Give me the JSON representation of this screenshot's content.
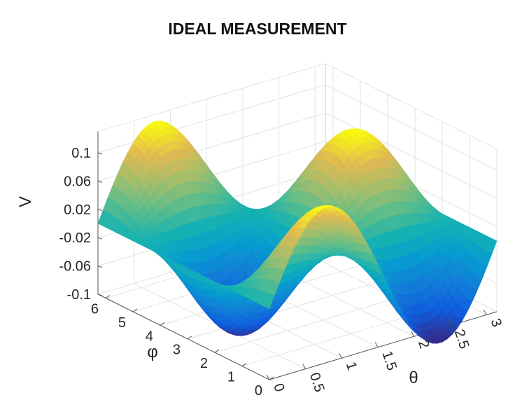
{
  "chart_data": {
    "type": "surface",
    "title": "IDEAL MEASUREMENT",
    "xlabel": "θ",
    "ylabel": "φ",
    "zlabel": "V",
    "x_range": [
      0,
      3.14159
    ],
    "y_range": [
      0,
      6.28318
    ],
    "zlim": [
      -0.1,
      0.13
    ],
    "x_ticks": [
      "0",
      "0.5",
      "1",
      "1.5",
      "2",
      "2.5",
      "3"
    ],
    "y_ticks": [
      "0",
      "1",
      "2",
      "3",
      "4",
      "5",
      "6"
    ],
    "z_ticks": [
      "-0.1",
      "-0.06",
      "-0.02",
      "0.02",
      "0.06",
      "0.1"
    ],
    "surface_formula": "V ≈ 0.12·sin(2θ)·cos(φ)",
    "sample_points": [
      {
        "x": 0,
        "y": 0,
        "z": 0
      },
      {
        "x": 0.785,
        "y": 0,
        "z": 0.12
      },
      {
        "x": 0.785,
        "y": 3.14,
        "z": -0.12
      },
      {
        "x": 0.785,
        "y": 6.28,
        "z": 0.12
      },
      {
        "x": 1.571,
        "y": 3.14,
        "z": 0
      },
      {
        "x": 2.356,
        "y": 0,
        "z": -0.12
      },
      {
        "x": 2.356,
        "y": 3.14,
        "z": 0.12
      },
      {
        "x": 2.356,
        "y": 6.28,
        "z": -0.12
      },
      {
        "x": 3.14,
        "y": 3.14,
        "z": 0
      }
    ],
    "grid": true,
    "colormap": "parula"
  }
}
